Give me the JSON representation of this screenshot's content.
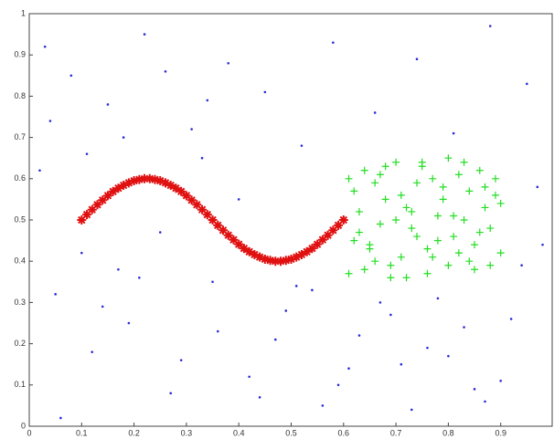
{
  "chart_data": {
    "type": "scatter",
    "xlim": [
      0,
      1
    ],
    "ylim": [
      0,
      1
    ],
    "xticks": [
      0,
      0.1,
      0.2,
      0.3,
      0.4,
      0.5,
      0.6,
      0.7,
      0.8,
      0.9
    ],
    "yticks": [
      0,
      0.1,
      0.2,
      0.3,
      0.4,
      0.5,
      0.6,
      0.7,
      0.8,
      0.9,
      1
    ],
    "series": [
      {
        "color": "#2b2bd6",
        "marker": "dot",
        "x": [
          0.03,
          0.08,
          0.15,
          0.22,
          0.31,
          0.38,
          0.45,
          0.52,
          0.58,
          0.66,
          0.74,
          0.81,
          0.88,
          0.95,
          0.05,
          0.12,
          0.19,
          0.27,
          0.35,
          0.42,
          0.49,
          0.56,
          0.63,
          0.71,
          0.78,
          0.85,
          0.92,
          0.98,
          0.02,
          0.1,
          0.17,
          0.25,
          0.33,
          0.4,
          0.47,
          0.54,
          0.61,
          0.69,
          0.76,
          0.83,
          0.9,
          0.97,
          0.06,
          0.14,
          0.21,
          0.29,
          0.36,
          0.44,
          0.51,
          0.59,
          0.67,
          0.73,
          0.8,
          0.87,
          0.94,
          0.04,
          0.11,
          0.18,
          0.26,
          0.34
        ],
        "values": [
          0.92,
          0.85,
          0.78,
          0.95,
          0.72,
          0.88,
          0.81,
          0.68,
          0.93,
          0.76,
          0.89,
          0.71,
          0.97,
          0.83,
          0.32,
          0.18,
          0.25,
          0.08,
          0.35,
          0.12,
          0.28,
          0.05,
          0.22,
          0.15,
          0.31,
          0.09,
          0.26,
          0.44,
          0.62,
          0.42,
          0.38,
          0.47,
          0.65,
          0.55,
          0.21,
          0.33,
          0.14,
          0.27,
          0.19,
          0.24,
          0.11,
          0.58,
          0.02,
          0.29,
          0.36,
          0.16,
          0.23,
          0.07,
          0.34,
          0.1,
          0.3,
          0.04,
          0.17,
          0.06,
          0.39,
          0.74,
          0.66,
          0.7,
          0.86,
          0.79
        ]
      },
      {
        "color": "#22dd22",
        "marker": "plus",
        "x": [
          0.61,
          0.63,
          0.65,
          0.67,
          0.69,
          0.71,
          0.73,
          0.75,
          0.77,
          0.79,
          0.81,
          0.83,
          0.85,
          0.87,
          0.89,
          0.62,
          0.64,
          0.66,
          0.68,
          0.7,
          0.72,
          0.74,
          0.76,
          0.78,
          0.8,
          0.82,
          0.84,
          0.86,
          0.88,
          0.9,
          0.61,
          0.64,
          0.67,
          0.7,
          0.73,
          0.76,
          0.79,
          0.82,
          0.85,
          0.88,
          0.62,
          0.65,
          0.68,
          0.71,
          0.74,
          0.77,
          0.8,
          0.83,
          0.86,
          0.89,
          0.63,
          0.66,
          0.69,
          0.72,
          0.75,
          0.78,
          0.81,
          0.84,
          0.87,
          0.9
        ],
        "values": [
          0.37,
          0.52,
          0.44,
          0.61,
          0.39,
          0.56,
          0.48,
          0.63,
          0.41,
          0.58,
          0.46,
          0.64,
          0.38,
          0.53,
          0.6,
          0.45,
          0.62,
          0.4,
          0.55,
          0.5,
          0.36,
          0.59,
          0.43,
          0.51,
          0.65,
          0.42,
          0.57,
          0.47,
          0.39,
          0.54,
          0.6,
          0.38,
          0.49,
          0.64,
          0.52,
          0.37,
          0.55,
          0.61,
          0.44,
          0.48,
          0.57,
          0.43,
          0.63,
          0.41,
          0.46,
          0.6,
          0.39,
          0.5,
          0.62,
          0.56,
          0.47,
          0.59,
          0.36,
          0.53,
          0.64,
          0.45,
          0.51,
          0.4,
          0.58,
          0.42
        ]
      },
      {
        "color": "#e01010",
        "marker": "star",
        "x": [
          0.1,
          0.11,
          0.12,
          0.13,
          0.14,
          0.15,
          0.16,
          0.17,
          0.18,
          0.19,
          0.2,
          0.21,
          0.22,
          0.23,
          0.24,
          0.25,
          0.26,
          0.27,
          0.28,
          0.29,
          0.3,
          0.31,
          0.32,
          0.33,
          0.34,
          0.35,
          0.36,
          0.37,
          0.38,
          0.39,
          0.4,
          0.41,
          0.42,
          0.43,
          0.44,
          0.45,
          0.46,
          0.47,
          0.48,
          0.49,
          0.5,
          0.51,
          0.52,
          0.53,
          0.54,
          0.55,
          0.56,
          0.57,
          0.58,
          0.59,
          0.6
        ],
        "values": [
          0.5,
          0.513,
          0.525,
          0.537,
          0.548,
          0.559,
          0.569,
          0.577,
          0.584,
          0.59,
          0.595,
          0.598,
          0.6,
          0.6,
          0.598,
          0.595,
          0.59,
          0.584,
          0.577,
          0.569,
          0.559,
          0.548,
          0.537,
          0.525,
          0.513,
          0.5,
          0.487,
          0.475,
          0.463,
          0.452,
          0.441,
          0.431,
          0.423,
          0.416,
          0.41,
          0.405,
          0.402,
          0.4,
          0.4,
          0.402,
          0.405,
          0.41,
          0.416,
          0.423,
          0.431,
          0.441,
          0.452,
          0.463,
          0.475,
          0.487,
          0.5
        ]
      }
    ]
  }
}
